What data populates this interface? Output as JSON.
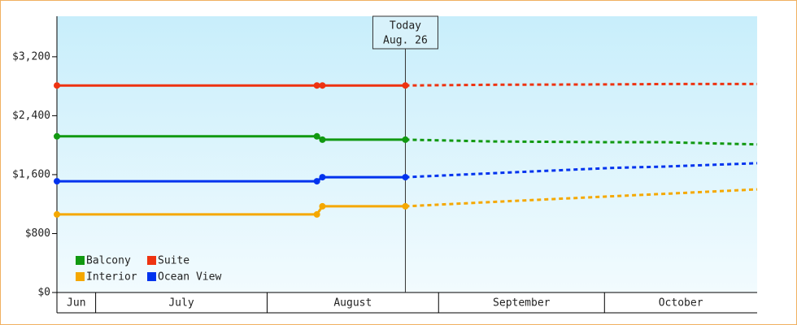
{
  "chart_data": {
    "type": "line",
    "xlim": [
      0,
      126.6
    ],
    "ylim": [
      0,
      3750
    ],
    "yticks": [
      {
        "value": 0,
        "label": "$0"
      },
      {
        "value": 800,
        "label": "$800"
      },
      {
        "value": 1600,
        "label": "$1,600"
      },
      {
        "value": 2400,
        "label": "$2,400"
      },
      {
        "value": 3200,
        "label": "$3,200"
      }
    ],
    "xbands": [
      {
        "label": "Jun",
        "from": 0,
        "to": 7
      },
      {
        "label": "July",
        "from": 7,
        "to": 38
      },
      {
        "label": "August",
        "from": 38,
        "to": 69
      },
      {
        "label": "September",
        "from": 69,
        "to": 99
      },
      {
        "label": "October",
        "from": 99,
        "to": 126.6
      }
    ],
    "today": {
      "x": 63,
      "title": "Today",
      "date": "Aug. 26"
    },
    "legend": "lower left",
    "x": [
      0,
      47,
      48,
      63,
      79,
      100,
      110,
      126.6
    ],
    "series": [
      {
        "name": "Balcony",
        "color": "#119911",
        "values": [
          2120,
          2120,
          2075,
          2075,
          2050,
          2040,
          2040,
          2010
        ]
      },
      {
        "name": "Suite",
        "color": "#ee3311",
        "values": [
          2810,
          2810,
          2810,
          2810,
          2820,
          2825,
          2830,
          2830
        ]
      },
      {
        "name": "Interior",
        "color": "#f5a800",
        "values": [
          1060,
          1060,
          1170,
          1170,
          1230,
          1305,
          1340,
          1400
        ]
      },
      {
        "name": "Ocean View",
        "color": "#0033ee",
        "values": [
          1510,
          1510,
          1565,
          1565,
          1620,
          1690,
          1710,
          1755
        ]
      }
    ]
  }
}
